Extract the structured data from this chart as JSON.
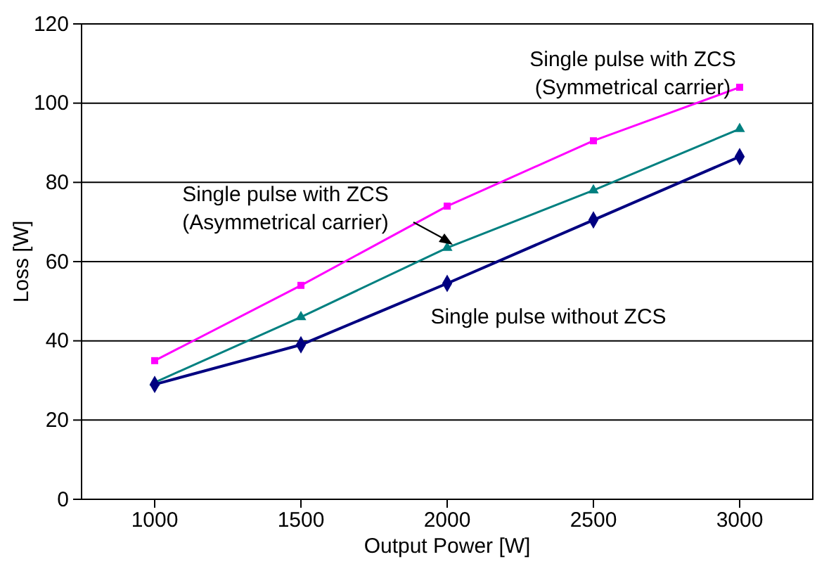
{
  "chart_data": {
    "type": "line",
    "xlabel": "Output Power [W]",
    "ylabel": "Loss [W]",
    "categories": [
      "1000",
      "1500",
      "2000",
      "2500",
      "3000"
    ],
    "ylim": [
      0,
      120
    ],
    "yticks": [
      0,
      20,
      40,
      60,
      80,
      100,
      120
    ],
    "grid": "y",
    "series": [
      {
        "name": "Single pulse with ZCS\n(Symmetrical carrier)",
        "color": "#ff00ff",
        "marker": "square",
        "values": [
          35,
          54,
          74,
          90.5,
          104
        ]
      },
      {
        "name": "Single pulse with ZCS\n(Asymmetrical carrier)",
        "color": "#008080",
        "marker": "triangle",
        "values": [
          29.5,
          46,
          63.5,
          78,
          93.5
        ]
      },
      {
        "name": "Single pulse without ZCS",
        "color": "#000080",
        "marker": "diamond",
        "values": [
          29,
          39,
          54.5,
          70.5,
          86.5
        ]
      }
    ]
  }
}
